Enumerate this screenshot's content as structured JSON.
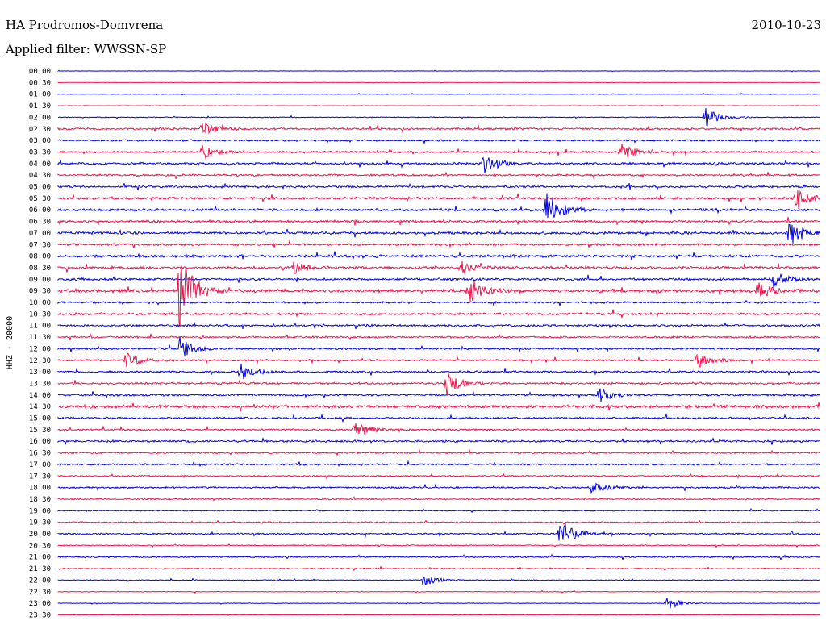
{
  "header": {
    "station": "HA Prodromos-Domvrena",
    "date": "2010-10-23",
    "filter": "Applied filter: WWSSN-SP"
  },
  "chart_data": {
    "type": "line",
    "ylabel": "HHZ - 20000",
    "colors": {
      "odd_trace": "#0000e6",
      "even_trace": "#f0104a"
    },
    "rows": [
      "00:00",
      "00:30",
      "01:00",
      "01:30",
      "02:00",
      "02:30",
      "03:00",
      "03:30",
      "04:00",
      "04:30",
      "05:00",
      "05:30",
      "06:00",
      "06:30",
      "07:00",
      "07:30",
      "08:00",
      "08:30",
      "09:00",
      "09:30",
      "10:00",
      "10:30",
      "11:00",
      "11:30",
      "12:00",
      "12:30",
      "13:00",
      "13:30",
      "14:00",
      "14:30",
      "15:00",
      "15:30",
      "16:00",
      "16:30",
      "17:00",
      "17:30",
      "18:00",
      "18:30",
      "19:00",
      "19:30",
      "20:00",
      "20:30",
      "21:00",
      "21:30",
      "22:00",
      "22:30",
      "23:00",
      "23:30"
    ],
    "noise_level": [
      0.2,
      0.15,
      0.3,
      0.2,
      0.5,
      1.2,
      1.0,
      1.1,
      1.3,
      1.2,
      1.3,
      1.5,
      1.6,
      1.4,
      1.5,
      1.3,
      1.6,
      1.5,
      1.4,
      2.0,
      1.2,
      1.4,
      1.3,
      1.1,
      1.2,
      1.1,
      1.2,
      1.2,
      1.3,
      1.8,
      1.2,
      1.0,
      1.2,
      1.0,
      1.0,
      0.8,
      1.0,
      0.8,
      0.6,
      0.8,
      0.9,
      0.6,
      0.8,
      0.6,
      0.5,
      0.4,
      0.3,
      0.2
    ],
    "events": [
      {
        "row": 4,
        "pos": 0.85,
        "amp": 14
      },
      {
        "row": 5,
        "pos": 0.19,
        "amp": 8
      },
      {
        "row": 7,
        "pos": 0.19,
        "amp": 10
      },
      {
        "row": 7,
        "pos": 0.74,
        "amp": 12
      },
      {
        "row": 8,
        "pos": 0.56,
        "amp": 14
      },
      {
        "row": 11,
        "pos": 0.97,
        "amp": 10
      },
      {
        "row": 12,
        "pos": 0.64,
        "amp": 26
      },
      {
        "row": 14,
        "pos": 0.96,
        "amp": 18
      },
      {
        "row": 17,
        "pos": 0.31,
        "amp": 8
      },
      {
        "row": 17,
        "pos": 0.53,
        "amp": 8
      },
      {
        "row": 18,
        "pos": 0.94,
        "amp": 10
      },
      {
        "row": 19,
        "pos": 0.16,
        "amp": 60
      },
      {
        "row": 19,
        "pos": 0.54,
        "amp": 16
      },
      {
        "row": 19,
        "pos": 0.92,
        "amp": 10
      },
      {
        "row": 24,
        "pos": 0.16,
        "amp": 14
      },
      {
        "row": 25,
        "pos": 0.09,
        "amp": 12
      },
      {
        "row": 25,
        "pos": 0.84,
        "amp": 10
      },
      {
        "row": 26,
        "pos": 0.24,
        "amp": 10
      },
      {
        "row": 27,
        "pos": 0.51,
        "amp": 14
      },
      {
        "row": 28,
        "pos": 0.71,
        "amp": 10
      },
      {
        "row": 31,
        "pos": 0.39,
        "amp": 12
      },
      {
        "row": 36,
        "pos": 0.7,
        "amp": 10
      },
      {
        "row": 40,
        "pos": 0.66,
        "amp": 18
      },
      {
        "row": 44,
        "pos": 0.48,
        "amp": 8
      },
      {
        "row": 46,
        "pos": 0.8,
        "amp": 8
      }
    ]
  }
}
